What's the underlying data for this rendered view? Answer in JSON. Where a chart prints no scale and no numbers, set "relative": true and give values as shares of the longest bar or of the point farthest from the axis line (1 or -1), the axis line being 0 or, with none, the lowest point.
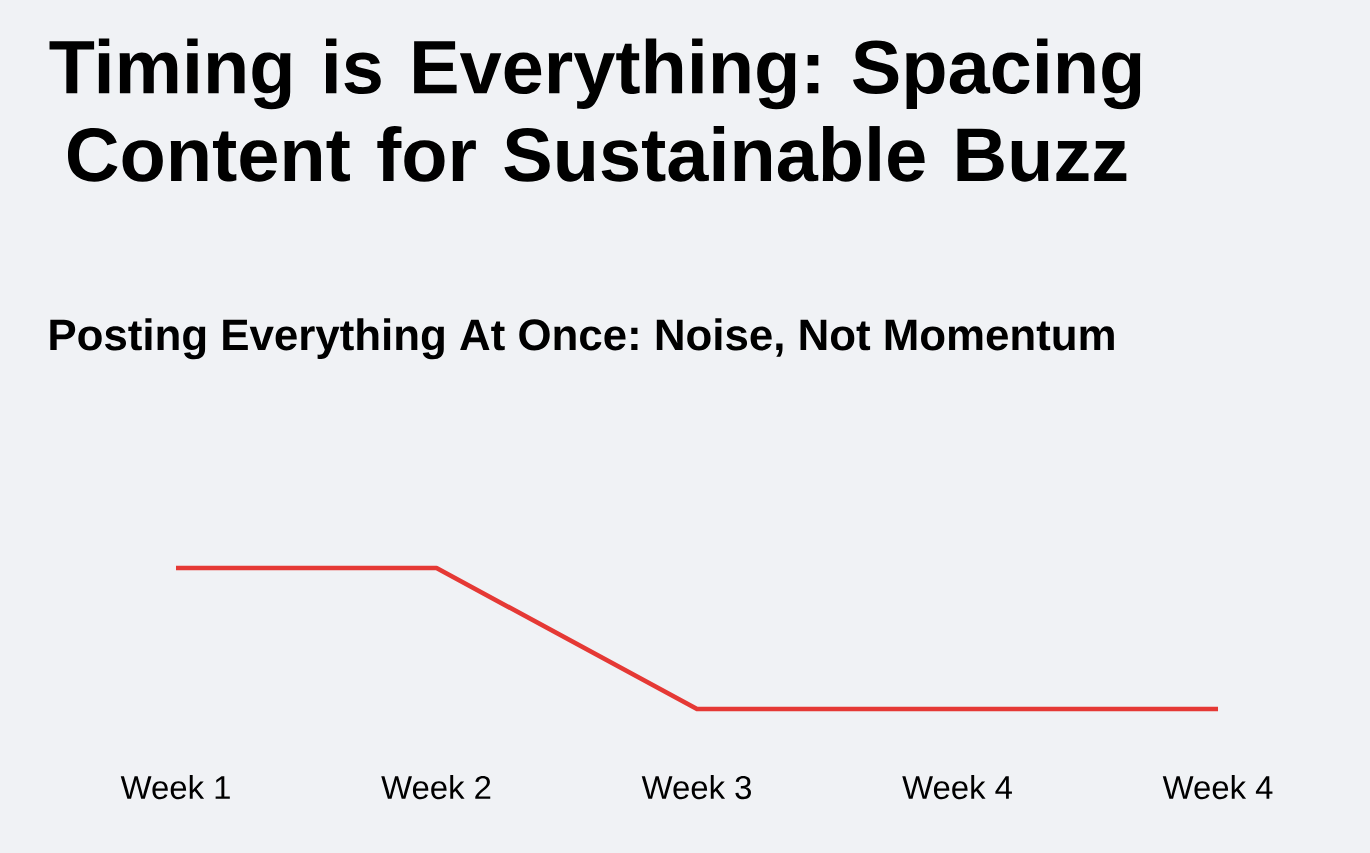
{
  "chart_data": {
    "type": "line",
    "title": "Timing is Everything: Spacing Content for Sustainable Buzz",
    "subtitle": "Posting Everything At Once: Noise, Not Momentum",
    "relative": true,
    "categories": [
      "Week 1",
      "Week 2",
      "Week 3",
      "Week 4",
      "Week 4"
    ],
    "series": [
      {
        "color": "#e53935",
        "values": [
          1,
          1,
          0,
          0,
          0
        ]
      }
    ],
    "marker": "none",
    "line_style": "solid"
  }
}
